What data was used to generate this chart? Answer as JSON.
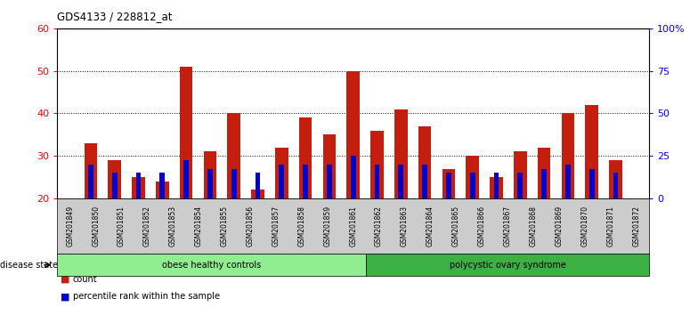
{
  "title": "GDS4133 / 228812_at",
  "samples": [
    "GSM201849",
    "GSM201850",
    "GSM201851",
    "GSM201852",
    "GSM201853",
    "GSM201854",
    "GSM201855",
    "GSM201856",
    "GSM201857",
    "GSM201858",
    "GSM201859",
    "GSM201861",
    "GSM201862",
    "GSM201863",
    "GSM201864",
    "GSM201865",
    "GSM201866",
    "GSM201867",
    "GSM201868",
    "GSM201869",
    "GSM201870",
    "GSM201871",
    "GSM201872"
  ],
  "count_values": [
    33,
    29,
    25,
    24,
    51,
    31,
    40,
    22,
    32,
    39,
    35,
    50,
    36,
    41,
    37,
    27,
    30,
    25,
    31,
    32,
    40,
    42,
    29
  ],
  "percentile_values": [
    28,
    26,
    26,
    26,
    29,
    27,
    27,
    26,
    28,
    28,
    28,
    30,
    28,
    28,
    28,
    26,
    26,
    26,
    26,
    27,
    28,
    27,
    26
  ],
  "groups": [
    {
      "label": "obese healthy controls",
      "start": 0,
      "end": 12,
      "color": "#90EE90"
    },
    {
      "label": "polycystic ovary syndrome",
      "start": 12,
      "end": 23,
      "color": "#3CB043"
    }
  ],
  "disease_state_label": "disease state",
  "ylim_left": [
    20,
    60
  ],
  "ylim_right": [
    0,
    100
  ],
  "yticks_left": [
    20,
    30,
    40,
    50,
    60
  ],
  "yticks_right": [
    0,
    25,
    50,
    75,
    100
  ],
  "ytick_labels_right": [
    "0",
    "25",
    "50",
    "75",
    "100%"
  ],
  "bar_color": "#C41E0E",
  "percentile_color": "#0000CD",
  "bar_width": 0.55,
  "percentile_bar_width": 0.22,
  "bg_color": "#D3D3D3",
  "legend_count_label": "count",
  "legend_percentile_label": "percentile rank within the sample",
  "n_obese": 12,
  "n_total": 23
}
